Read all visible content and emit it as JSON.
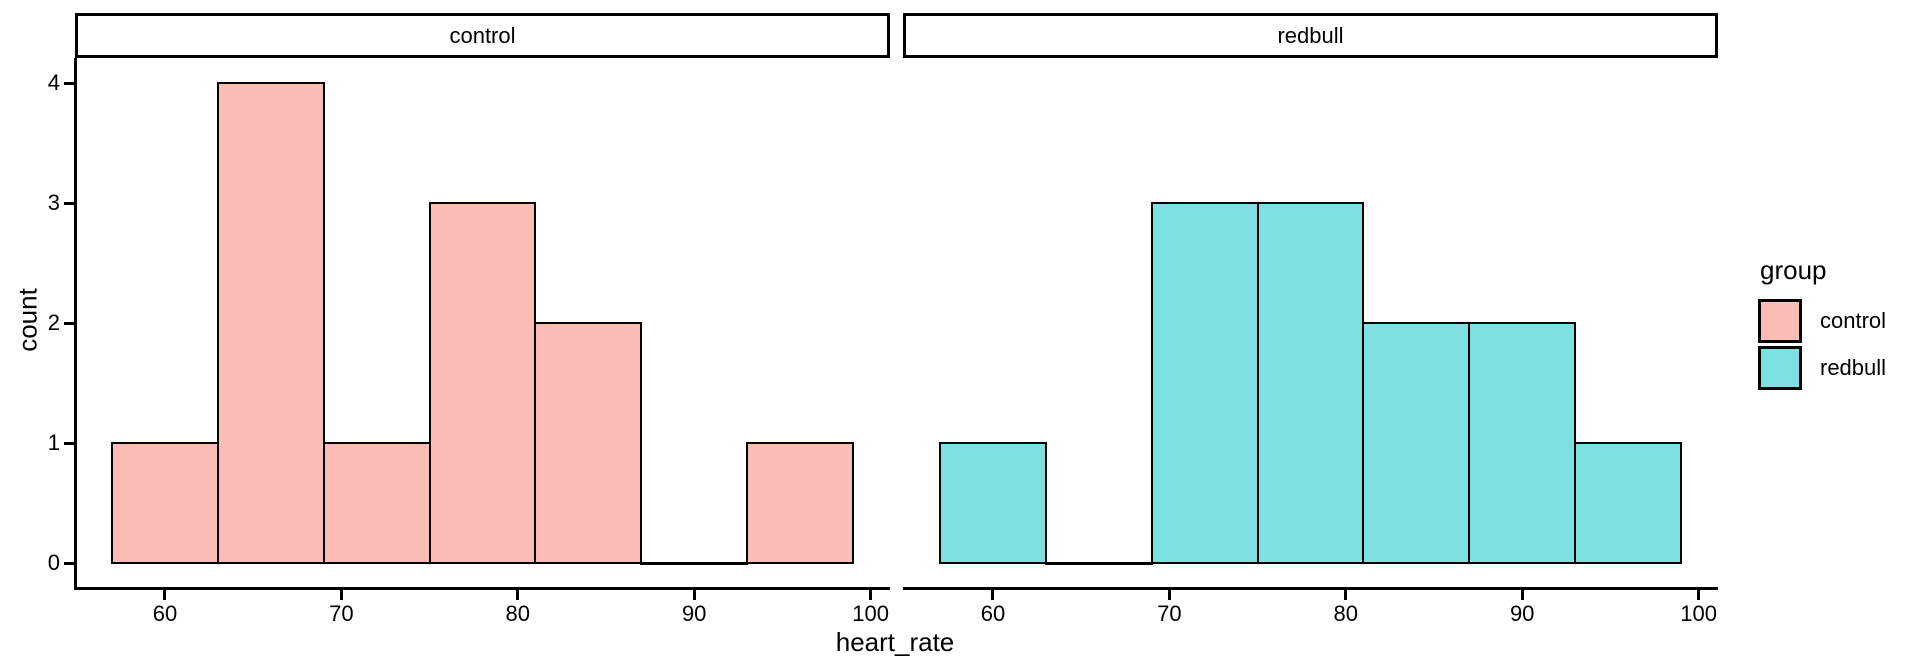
{
  "chart_data": {
    "type": "bar",
    "variant": "faceted_histogram",
    "xlabel": "heart_rate",
    "ylabel": "count",
    "facet_variable": "group",
    "bin_edges": [
      57,
      63,
      69,
      75,
      81,
      87,
      93,
      99
    ],
    "binwidth": 6,
    "facets": [
      {
        "name": "control",
        "counts": [
          1,
          4,
          1,
          3,
          2,
          0,
          1
        ]
      },
      {
        "name": "redbull",
        "counts": [
          1,
          0,
          3,
          3,
          2,
          2,
          1
        ]
      }
    ],
    "x_ticks": [
      60,
      70,
      80,
      90,
      100
    ],
    "y_ticks": [
      0,
      1,
      2,
      3,
      4
    ],
    "xlim": [
      54.9,
      101.1
    ],
    "ylim": [
      0,
      4
    ],
    "grid": false,
    "legend_position": "right"
  },
  "axes": {
    "x_title": "heart_rate",
    "y_title": "count"
  },
  "legend": {
    "title": "group",
    "items": [
      {
        "label": "control",
        "color": "#FBBCB6"
      },
      {
        "label": "redbull",
        "color": "#7FE0E2"
      }
    ]
  },
  "colors": {
    "control_fill": "#FBBCB6",
    "redbull_fill": "#7FE0E2",
    "stroke": "#000000",
    "panel_background": "#FFFFFF",
    "strip_background": "#FFFFFF",
    "text": "#000000"
  }
}
